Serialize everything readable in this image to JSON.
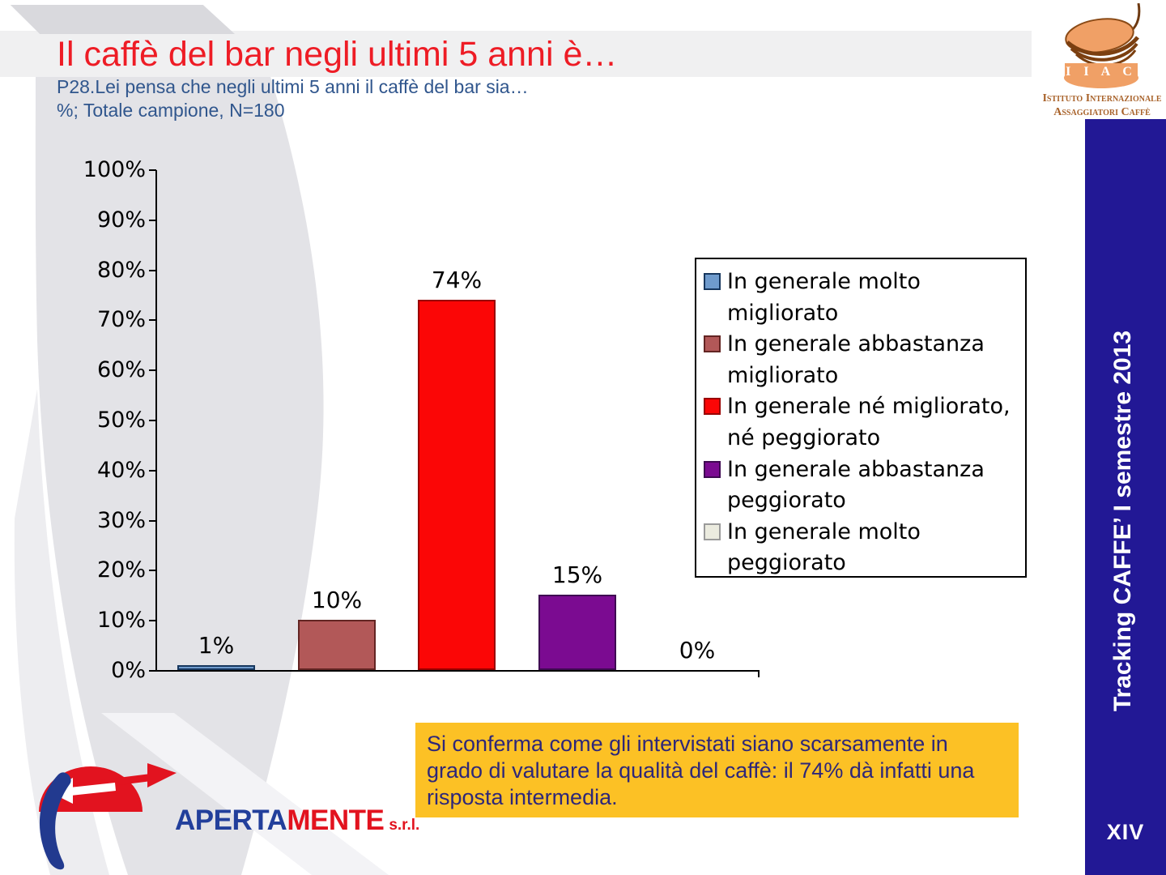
{
  "header": {
    "title": "Il caffè del bar negli ultimi 5 anni è…",
    "subtitle_line1": "P28.Lei pensa che negli ultimi 5 anni il caffè del bar sia…",
    "subtitle_line2": "%; Totale campione, N=180",
    "title_color": "#EE1C25",
    "subtitle_color": "#30568D"
  },
  "chart_data": {
    "type": "bar",
    "categories": [
      "In generale molto migliorato",
      "In generale abbastanza migliorato",
      "In generale né migliorato, né peggiorato",
      "In generale abbastanza peggiorato",
      "In generale molto peggiorato"
    ],
    "values": [
      1,
      10,
      74,
      15,
      0
    ],
    "value_labels": [
      "1%",
      "10%",
      "74%",
      "15%",
      "0%"
    ],
    "bar_colors": [
      "#6F9BCD",
      "#B25858",
      "#FB0606",
      "#7B0B91",
      "#EBEBDF"
    ],
    "bar_border_colors": [
      "#17375E",
      "#632523",
      "#990000",
      "#3F0A52",
      "#9A9A9A"
    ],
    "ytick_labels": [
      "100%",
      "90%",
      "80%",
      "70%",
      "60%",
      "50%",
      "40%",
      "30%",
      "20%",
      "10%",
      "0%"
    ],
    "ylim": [
      0,
      100
    ],
    "grid": false,
    "legend": {
      "position": "right",
      "items": [
        {
          "line1": "In generale molto",
          "line2": "migliorato",
          "color": "#6F9BCD",
          "border_color": "#17375E"
        },
        {
          "line1": "In generale abbastanza",
          "line2": "migliorato",
          "color": "#B25858",
          "border_color": "#632523"
        },
        {
          "line1": "In generale né migliorato,",
          "line2": "né peggiorato",
          "color": "#FB0606",
          "border_color": "#990000"
        },
        {
          "line1": "In generale abbastanza",
          "line2": "peggiorato",
          "color": "#7B0B91",
          "border_color": "#3F0A52"
        },
        {
          "line1": "In generale molto",
          "line2": "peggiorato",
          "color": "#EBEBDF",
          "border_color": "#9A9A9A"
        }
      ]
    }
  },
  "note_box": {
    "line1": "Si conferma come gli intervistati siano scarsamente in",
    "line2": "grado di  valutare la qualità del caffè: il 74% dà infatti una",
    "line3": "risposta intermedia.",
    "bg_color": "#FCC125",
    "text_color": "#2E2779"
  },
  "sidebar": {
    "vertical_label": "Tracking CAFFE’ I semestre 2013",
    "page_number": "XIV",
    "bg_color": "#221895"
  },
  "iiac_logo": {
    "acronym": "I I A C",
    "line1": "Istituto Internazionale",
    "line2": "Assaggiatori Caffè"
  },
  "apertamente_logo": {
    "part1": "APERTA",
    "part2": "MENTE",
    "suffix": "s.r.l."
  }
}
